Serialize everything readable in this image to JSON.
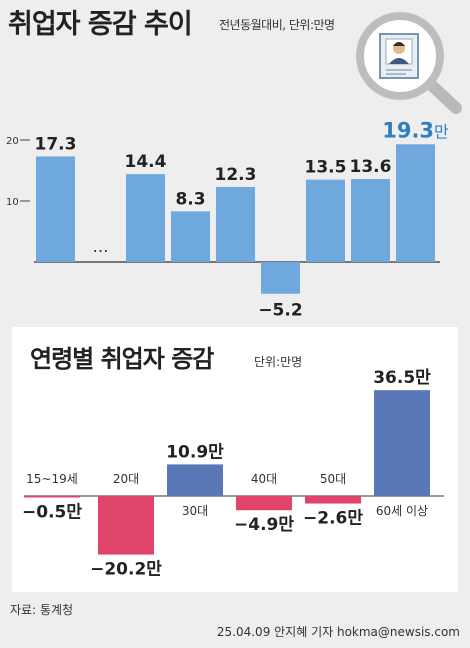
{
  "header": {
    "title": "취업자 증감 추이",
    "subtitle": "전년동월대비, 단위:만명"
  },
  "chart_data": [
    {
      "type": "bar",
      "title": "취업자 증감 추이",
      "subtitle": "전년동월대비, 단위:만명",
      "yticks": [
        "20",
        "10"
      ],
      "ylim": [
        -6,
        21
      ],
      "gap_marker": "…",
      "categories": [
        "",
        "",
        "",
        "",
        "",
        "",
        "",
        "",
        ""
      ],
      "values": [
        17.3,
        null,
        14.4,
        8.3,
        12.3,
        -5.2,
        13.5,
        13.6,
        19.3
      ],
      "labels": [
        "17.3",
        "",
        "14.4",
        "8.3",
        "12.3",
        "−5.2",
        "13.5",
        "13.6",
        "19.3"
      ],
      "highlight_suffix": "만",
      "colors": {
        "bar": "#6fa8dc",
        "highlight_text": "#2f7fc1"
      }
    },
    {
      "type": "bar",
      "title": "연령별 취업자 증감",
      "unit": "단위:만명",
      "categories": [
        "15~19세",
        "20대",
        "30대",
        "40대",
        "50대",
        "60세 이상"
      ],
      "values": [
        -0.5,
        -20.2,
        10.9,
        -4.9,
        -2.6,
        36.5
      ],
      "labels": [
        "−0.5만",
        "−20.2만",
        "10.9만",
        "−4.9만",
        "−2.6만",
        "36.5만"
      ],
      "colors": {
        "positive": "#5a78b8",
        "negative": "#e0446a"
      }
    }
  ],
  "footer": {
    "source": "자료: 통계청",
    "credit": "25.04.09 안지혜 기자 hokma@newsis.com"
  },
  "icons": [
    "magnifier-icon",
    "person-icon"
  ]
}
